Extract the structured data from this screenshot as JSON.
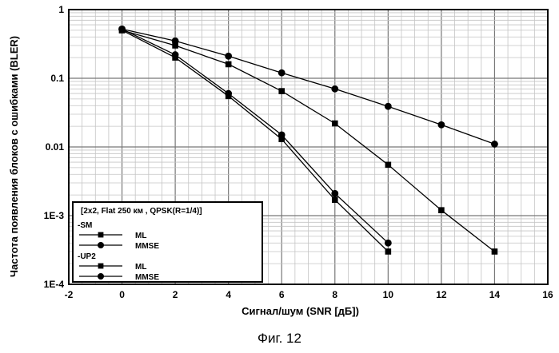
{
  "caption": "Фиг. 12",
  "chart_data": {
    "type": "line",
    "xlabel": "Сигнал/шум (SNR [дБ])",
    "ylabel": "Частота появления блоков с ошибками (BLER)",
    "xlim": [
      -2,
      16
    ],
    "ylim": [
      0.0001,
      1
    ],
    "yscale": "log",
    "grid": true,
    "x_ticks": [
      "-2",
      "0",
      "2",
      "4",
      "6",
      "8",
      "10",
      "12",
      "14",
      "16"
    ],
    "y_ticks": [
      "1",
      "0.1",
      "0.01",
      "1E-3",
      "1E-4"
    ],
    "legend": {
      "placement": "bottom-left",
      "title": "[2x2, Flat 250 км , QPSK(R=1/4)]",
      "groups": [
        {
          "label": "-SM",
          "entries": [
            "ML",
            "MMSE"
          ]
        },
        {
          "label": "-UP2",
          "entries": [
            "ML",
            "MMSE"
          ]
        }
      ]
    },
    "series": [
      {
        "name": "ML",
        "group": "SM",
        "marker": "square",
        "x": [
          0,
          2,
          4,
          6,
          8,
          10
        ],
        "y": [
          0.5,
          0.2,
          0.055,
          0.013,
          0.0017,
          0.0003
        ]
      },
      {
        "name": "MMSE",
        "group": "SM",
        "marker": "circle",
        "x": [
          0,
          2,
          4,
          6,
          8,
          10
        ],
        "y": [
          0.52,
          0.22,
          0.06,
          0.015,
          0.0021,
          0.0004
        ]
      },
      {
        "name": "ML",
        "group": "UP2",
        "marker": "square",
        "x": [
          0,
          2,
          4,
          6,
          8,
          10,
          12,
          14
        ],
        "y": [
          0.5,
          0.3,
          0.16,
          0.065,
          0.022,
          0.0055,
          0.0012,
          0.0003
        ]
      },
      {
        "name": "MMSE",
        "group": "UP2",
        "marker": "circle",
        "x": [
          0,
          2,
          4,
          6,
          8,
          10,
          12,
          14
        ],
        "y": [
          0.52,
          0.35,
          0.21,
          0.12,
          0.07,
          0.039,
          0.021,
          0.011
        ]
      }
    ]
  }
}
